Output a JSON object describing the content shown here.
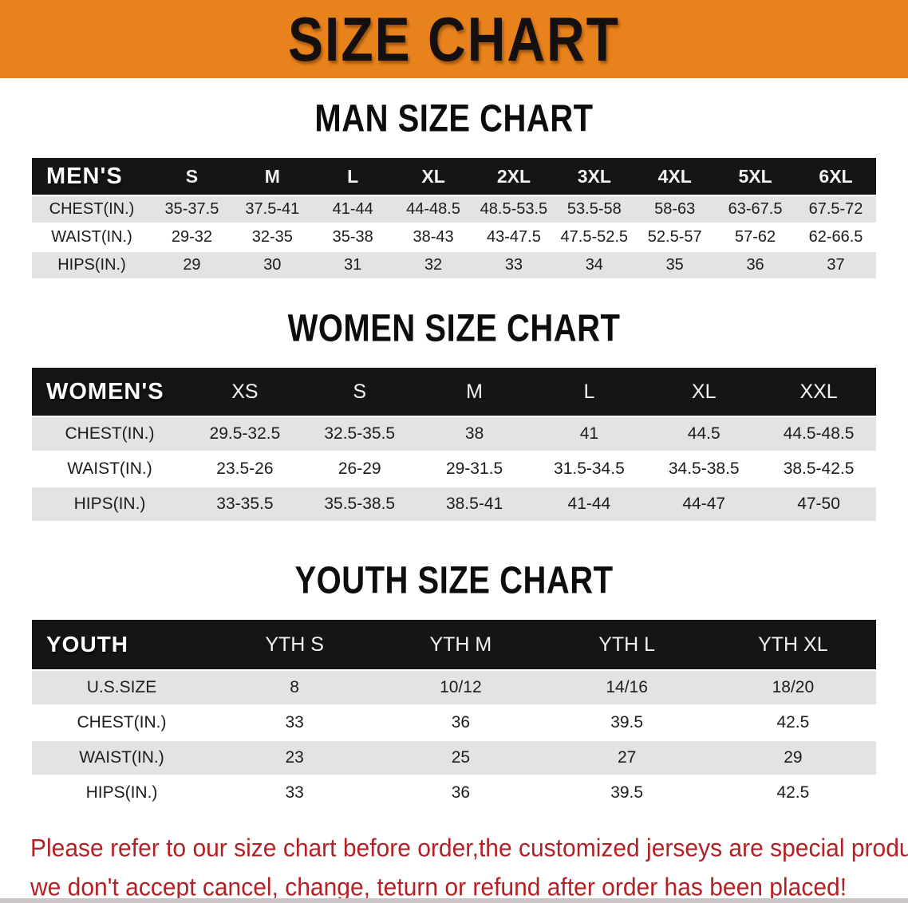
{
  "banner": {
    "title": "SIZE CHART"
  },
  "theme": {
    "banner_bg": "#E8821C",
    "header_bar": "#171513",
    "row_gray": "#E3E3E3",
    "text_red": "#B22126"
  },
  "sections": [
    {
      "heading": "MAN SIZE CHART",
      "corner": "MEN'S",
      "columns": [
        "S",
        "M",
        "L",
        "XL",
        "2XL",
        "3XL",
        "4XL",
        "5XL",
        "6XL"
      ],
      "rows": [
        {
          "label": "CHEST(IN.)",
          "values": [
            "35-37.5",
            "37.5-41",
            "41-44",
            "44-48.5",
            "48.5-53.5",
            "53.5-58",
            "58-63",
            "63-67.5",
            "67.5-72"
          ]
        },
        {
          "label": "WAIST(IN.)",
          "values": [
            "29-32",
            "32-35",
            "35-38",
            "38-43",
            "43-47.5",
            "47.5-52.5",
            "52.5-57",
            "57-62",
            "62-66.5"
          ]
        },
        {
          "label": "HIPS(IN.)",
          "values": [
            "29",
            "30",
            "31",
            "32",
            "33",
            "34",
            "35",
            "36",
            "37"
          ]
        }
      ]
    },
    {
      "heading": "WOMEN SIZE CHART",
      "corner": "WOMEN'S",
      "columns": [
        "XS",
        "S",
        "M",
        "L",
        "XL",
        "XXL"
      ],
      "rows": [
        {
          "label": "CHEST(IN.)",
          "values": [
            "29.5-32.5",
            "32.5-35.5",
            "38",
            "41",
            "44.5",
            "44.5-48.5"
          ]
        },
        {
          "label": "WAIST(IN.)",
          "values": [
            "23.5-26",
            "26-29",
            "29-31.5",
            "31.5-34.5",
            "34.5-38.5",
            "38.5-42.5"
          ]
        },
        {
          "label": "HIPS(IN.)",
          "values": [
            "33-35.5",
            "35.5-38.5",
            "38.5-41",
            "41-44",
            "44-47",
            "47-50"
          ]
        }
      ]
    },
    {
      "heading": "YOUTH SIZE CHART",
      "corner": "YOUTH",
      "columns": [
        "YTH S",
        "YTH M",
        "YTH L",
        "YTH XL"
      ],
      "rows": [
        {
          "label": "U.S.SIZE",
          "values": [
            "8",
            "10/12",
            "14/16",
            "18/20"
          ]
        },
        {
          "label": "CHEST(IN.)",
          "values": [
            "33",
            "36",
            "39.5",
            "42.5"
          ]
        },
        {
          "label": "WAIST(IN.)",
          "values": [
            "23",
            "25",
            "27",
            "29"
          ]
        },
        {
          "label": "HIPS(IN.)",
          "values": [
            "33",
            "36",
            "39.5",
            "42.5"
          ]
        }
      ]
    }
  ],
  "disclaimer": {
    "line1": "Please refer to our size chart before order,the customized jerseys are special products,",
    "line2": "we don't accept cancel, change, teturn or refund after order has been placed!"
  }
}
